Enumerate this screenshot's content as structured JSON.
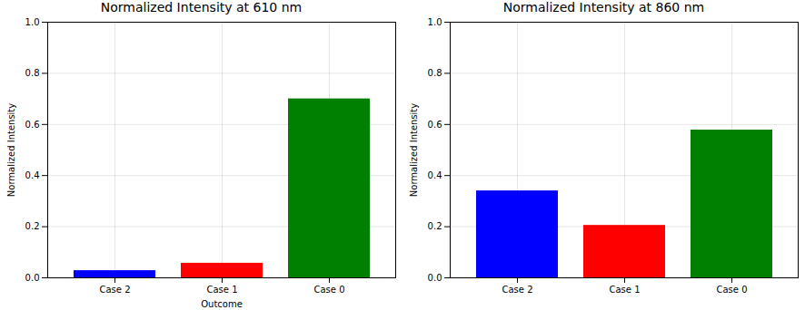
{
  "chart_data": [
    {
      "type": "bar",
      "title": "Normalized Intensity at 610 nm",
      "xlabel": "Outcome",
      "ylabel": "Normalized Intensity",
      "categories": [
        "Case 2",
        "Case 1",
        "Case 0"
      ],
      "values": [
        0.028,
        0.057,
        0.7
      ],
      "colors": [
        "#0000ff",
        "#ff0000",
        "#008000"
      ],
      "ylim": [
        0,
        1
      ],
      "yticks": [
        {
          "value": 0,
          "label": "0.0"
        },
        {
          "value": 0.2,
          "label": "0.2"
        },
        {
          "value": 0.4,
          "label": "0.4"
        },
        {
          "value": 0.6,
          "label": "0.6"
        },
        {
          "value": 0.8,
          "label": "0.8"
        },
        {
          "value": 1,
          "label": "1.0"
        }
      ],
      "grid": true
    },
    {
      "type": "bar",
      "title": "Normalized Intensity at 860 nm",
      "ylabel": "Normalized Intensity",
      "categories": [
        "Case 2",
        "Case 1",
        "Case 0"
      ],
      "values": [
        0.34,
        0.205,
        0.578
      ],
      "colors": [
        "#0000ff",
        "#ff0000",
        "#008000"
      ],
      "ylim": [
        0,
        1
      ],
      "yticks": [
        {
          "value": 0,
          "label": "0.0"
        },
        {
          "value": 0.2,
          "label": "0.2"
        },
        {
          "value": 0.4,
          "label": "0.4"
        },
        {
          "value": 0.6,
          "label": "0.6"
        },
        {
          "value": 0.8,
          "label": "0.8"
        },
        {
          "value": 1,
          "label": "1.0"
        }
      ],
      "grid": true
    }
  ]
}
